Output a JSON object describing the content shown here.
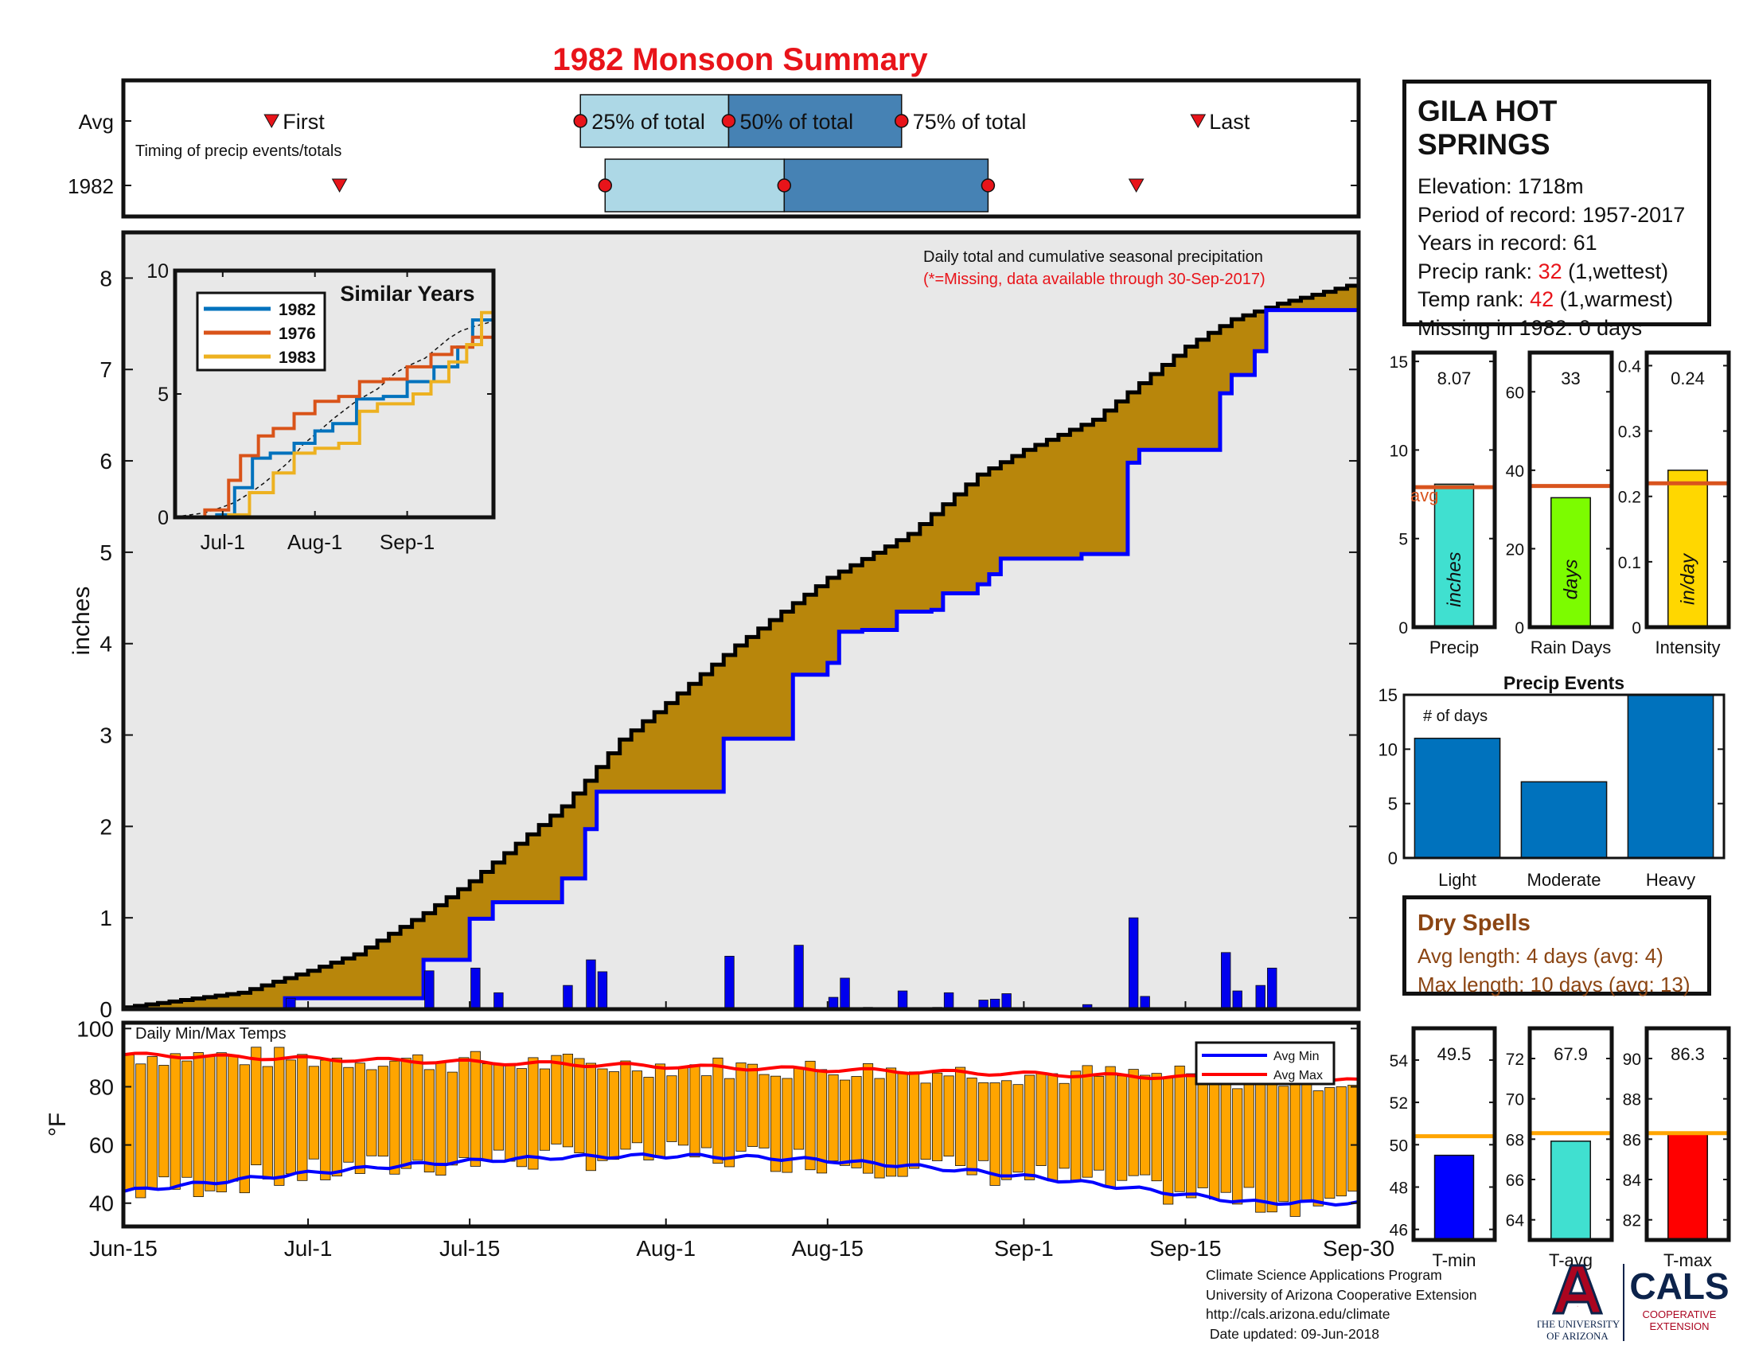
{
  "title": "1982 Monsoon Summary",
  "timing": {
    "row_labels": [
      "Avg",
      "1982"
    ],
    "first_label": "First",
    "last_label": "Last",
    "caption": "Timing of precip events/totals",
    "q25_label": "25% of total",
    "q50_label": "50% of total",
    "q75_label": "75% of total",
    "avg": {
      "first": 12,
      "q25": 37,
      "q50": 49,
      "q75": 63,
      "last": 87
    },
    "year": {
      "first": 17.5,
      "q25": 39,
      "q50": 53.5,
      "q75": 70,
      "last": 82
    }
  },
  "station": {
    "name": "GILA HOT SPRINGS",
    "elevation": "Elevation: 1718m",
    "period": "Period of record: 1957-2017",
    "years": "Years in record: 61",
    "precip_rank_label": "Precip rank: ",
    "precip_rank_value": "32",
    "precip_rank_note": " (1,wettest)",
    "temp_rank_label": "Temp rank: ",
    "temp_rank_value": "42",
    "temp_rank_note": " (1,warmest)",
    "missing": "Missing in 1982: 0 days"
  },
  "main_chart": {
    "ylabel": "inches",
    "yticks": [
      0,
      1,
      2,
      3,
      4,
      5,
      6,
      7,
      8
    ],
    "ylim": [
      0,
      8.5
    ],
    "xticks": [
      {
        "label": "Jun-15",
        "day": 0
      },
      {
        "label": "Jul-1",
        "day": 16
      },
      {
        "label": "Jul-15",
        "day": 30
      },
      {
        "label": "Aug-1",
        "day": 47
      },
      {
        "label": "Aug-15",
        "day": 61
      },
      {
        "label": "Sep-1",
        "day": 78
      },
      {
        "label": "Sep-15",
        "day": 92
      },
      {
        "label": "Sep-30",
        "day": 107
      }
    ],
    "note": "Daily total and cumulative seasonal precipitation",
    "missing_note": "(*=Missing, data available through 30-Sep-2017)",
    "colors": {
      "avg_fill": "#b8860b",
      "above_fill": "#228b22",
      "year_line": "#0000ff",
      "avg_line": "#000000",
      "bars": "#0000ee",
      "background": "#e8e8e8"
    }
  },
  "chart_data": {
    "type": "line",
    "x_unit": "days since Jun-15",
    "daily_precip": [
      {
        "day": 14.5,
        "value": 0.12
      },
      {
        "day": 26.5,
        "value": 0.42
      },
      {
        "day": 30.5,
        "value": 0.45
      },
      {
        "day": 32.5,
        "value": 0.18
      },
      {
        "day": 38.5,
        "value": 0.26
      },
      {
        "day": 40.5,
        "value": 0.54
      },
      {
        "day": 41.5,
        "value": 0.41
      },
      {
        "day": 52.5,
        "value": 0.58
      },
      {
        "day": 58.5,
        "value": 0.7
      },
      {
        "day": 61.5,
        "value": 0.13
      },
      {
        "day": 62.5,
        "value": 0.34
      },
      {
        "day": 64.5,
        "value": 0.02
      },
      {
        "day": 67.5,
        "value": 0.2
      },
      {
        "day": 70.5,
        "value": 0.02
      },
      {
        "day": 71.5,
        "value": 0.18
      },
      {
        "day": 74.5,
        "value": 0.1
      },
      {
        "day": 75.5,
        "value": 0.11
      },
      {
        "day": 76.5,
        "value": 0.17
      },
      {
        "day": 83.5,
        "value": 0.05
      },
      {
        "day": 87.5,
        "value": 1.0
      },
      {
        "day": 88.5,
        "value": 0.14
      },
      {
        "day": 95.5,
        "value": 0.62
      },
      {
        "day": 96.5,
        "value": 0.2
      },
      {
        "day": 98.5,
        "value": 0.26
      },
      {
        "day": 99.5,
        "value": 0.45
      }
    ],
    "series": [
      {
        "name": "1982 cumulative"
      },
      {
        "name": "Average cumulative",
        "x": [
          0,
          10,
          16,
          20,
          26,
          30,
          38,
          40,
          43,
          47,
          53,
          57,
          61,
          68,
          74,
          78,
          84,
          88,
          92,
          96,
          100,
          104,
          107
        ],
        "y": [
          0.02,
          0.18,
          0.42,
          0.6,
          1.05,
          1.4,
          2.22,
          2.5,
          2.95,
          3.35,
          3.98,
          4.35,
          4.72,
          5.2,
          5.85,
          6.12,
          6.45,
          6.85,
          7.25,
          7.55,
          7.72,
          7.85,
          7.95
        ]
      }
    ]
  },
  "inset": {
    "title": "Similar Years",
    "yticks": [
      0,
      5,
      10
    ],
    "xticks": [
      {
        "label": "Jul-1",
        "day": 16
      },
      {
        "label": "Aug-1",
        "day": 47
      },
      {
        "label": "Sep-1",
        "day": 78
      }
    ],
    "series": [
      {
        "name": "1982",
        "color": "#0072bd",
        "x": [
          0,
          14,
          20,
          26,
          32,
          40,
          47,
          53,
          61,
          70,
          78,
          87,
          95,
          100,
          107
        ],
        "y": [
          0,
          0.1,
          1.2,
          2.4,
          2.6,
          3.0,
          3.5,
          3.8,
          4.8,
          4.9,
          5.5,
          6.1,
          6.9,
          8.0,
          8.0
        ]
      },
      {
        "name": "1976",
        "color": "#d95319",
        "x": [
          0,
          10,
          18,
          22,
          28,
          33,
          40,
          47,
          55,
          62,
          70,
          78,
          86,
          93,
          100,
          107
        ],
        "y": [
          0,
          0.3,
          1.5,
          2.5,
          3.3,
          3.6,
          4.2,
          4.7,
          4.9,
          5.5,
          5.6,
          6.1,
          6.6,
          6.9,
          7.3,
          7.5
        ]
      },
      {
        "name": "1983",
        "color": "#edb120",
        "x": [
          0,
          18,
          25,
          33,
          40,
          47,
          55,
          62,
          68,
          72,
          80,
          86,
          92,
          98,
          103,
          107
        ],
        "y": [
          0,
          0.1,
          1.0,
          1.8,
          2.6,
          2.8,
          3.0,
          4.3,
          4.6,
          4.6,
          5.0,
          5.5,
          6.3,
          7.0,
          8.3,
          9.8
        ]
      }
    ]
  },
  "stats": {
    "avg_label": "avg",
    "panels": [
      {
        "label": "Precip",
        "value_text": "8.07",
        "value": 8.07,
        "avg": 7.9,
        "ymax": 15.5,
        "ticks": [
          0,
          5,
          10,
          15
        ],
        "unit": "inches",
        "color": "#40e0d0"
      },
      {
        "label": "Rain Days",
        "value_text": "33",
        "value": 33,
        "avg": 36,
        "ymax": 70,
        "ticks": [
          0,
          20,
          40,
          60
        ],
        "unit": "days",
        "color": "#7cfc00"
      },
      {
        "label": "Intensity",
        "value_text": "0.24",
        "value": 0.24,
        "avg": 0.22,
        "ymax": 0.42,
        "ticks": [
          0,
          0.1,
          0.2,
          0.3,
          0.4
        ],
        "unit": "in/day",
        "color": "#ffd700"
      }
    ]
  },
  "events": {
    "title": "Precip Events",
    "ylabel_note": "# of days",
    "categories": [
      "Light",
      "Moderate",
      "Heavy"
    ],
    "values": [
      11,
      7,
      15
    ],
    "ylim": [
      0,
      15
    ],
    "yticks": [
      0,
      5,
      10,
      15
    ],
    "color": "#0072bd"
  },
  "dry_spells": {
    "title": "Dry Spells",
    "avg_length": "Avg length: 4 days (avg: 4)",
    "max_length": "Max length: 10 days (avg: 13)"
  },
  "temps": {
    "title": "Daily Min/Max Temps",
    "ylabel": "°F",
    "yticks": [
      40,
      60,
      80,
      100
    ],
    "ylim": [
      32,
      102
    ],
    "legend": [
      "Avg Min",
      "Avg Max"
    ],
    "colors": {
      "bars": "#ffa500",
      "min": "#0000ff",
      "max": "#ff0000"
    }
  },
  "temp_panels": [
    {
      "label": "T-min",
      "value_text": "49.5",
      "value": 49.5,
      "avg": 50.4,
      "ymin": 45.5,
      "ymax": 55.5,
      "ticks": [
        46,
        48,
        50,
        52,
        54
      ],
      "color": "#0000ff"
    },
    {
      "label": "T-avg",
      "value_text": "67.9",
      "value": 67.9,
      "avg": 68.3,
      "ymin": 63,
      "ymax": 73.5,
      "ticks": [
        64,
        66,
        68,
        70,
        72
      ],
      "color": "#40e0d0"
    },
    {
      "label": "T-max",
      "value_text": "86.3",
      "value": 86.3,
      "avg": 86.3,
      "ymin": 81,
      "ymax": 91.5,
      "ticks": [
        82,
        84,
        86,
        88,
        90
      ],
      "color": "#ff0000"
    }
  ],
  "footer": {
    "line1": "Climate Science Applications Program",
    "line2": "University of Arizona Cooperative Extension",
    "line3": "http://cals.arizona.edu/climate",
    "line4": " Date updated: 09-Jun-2018"
  },
  "logos": {
    "ua_letter": "A",
    "ua_line1": "THE UNIVERSITY",
    "ua_line2": "OF ARIZONA",
    "cals": "CALS",
    "cals_line1": "COOPERATIVE",
    "cals_line2": "EXTENSION"
  }
}
